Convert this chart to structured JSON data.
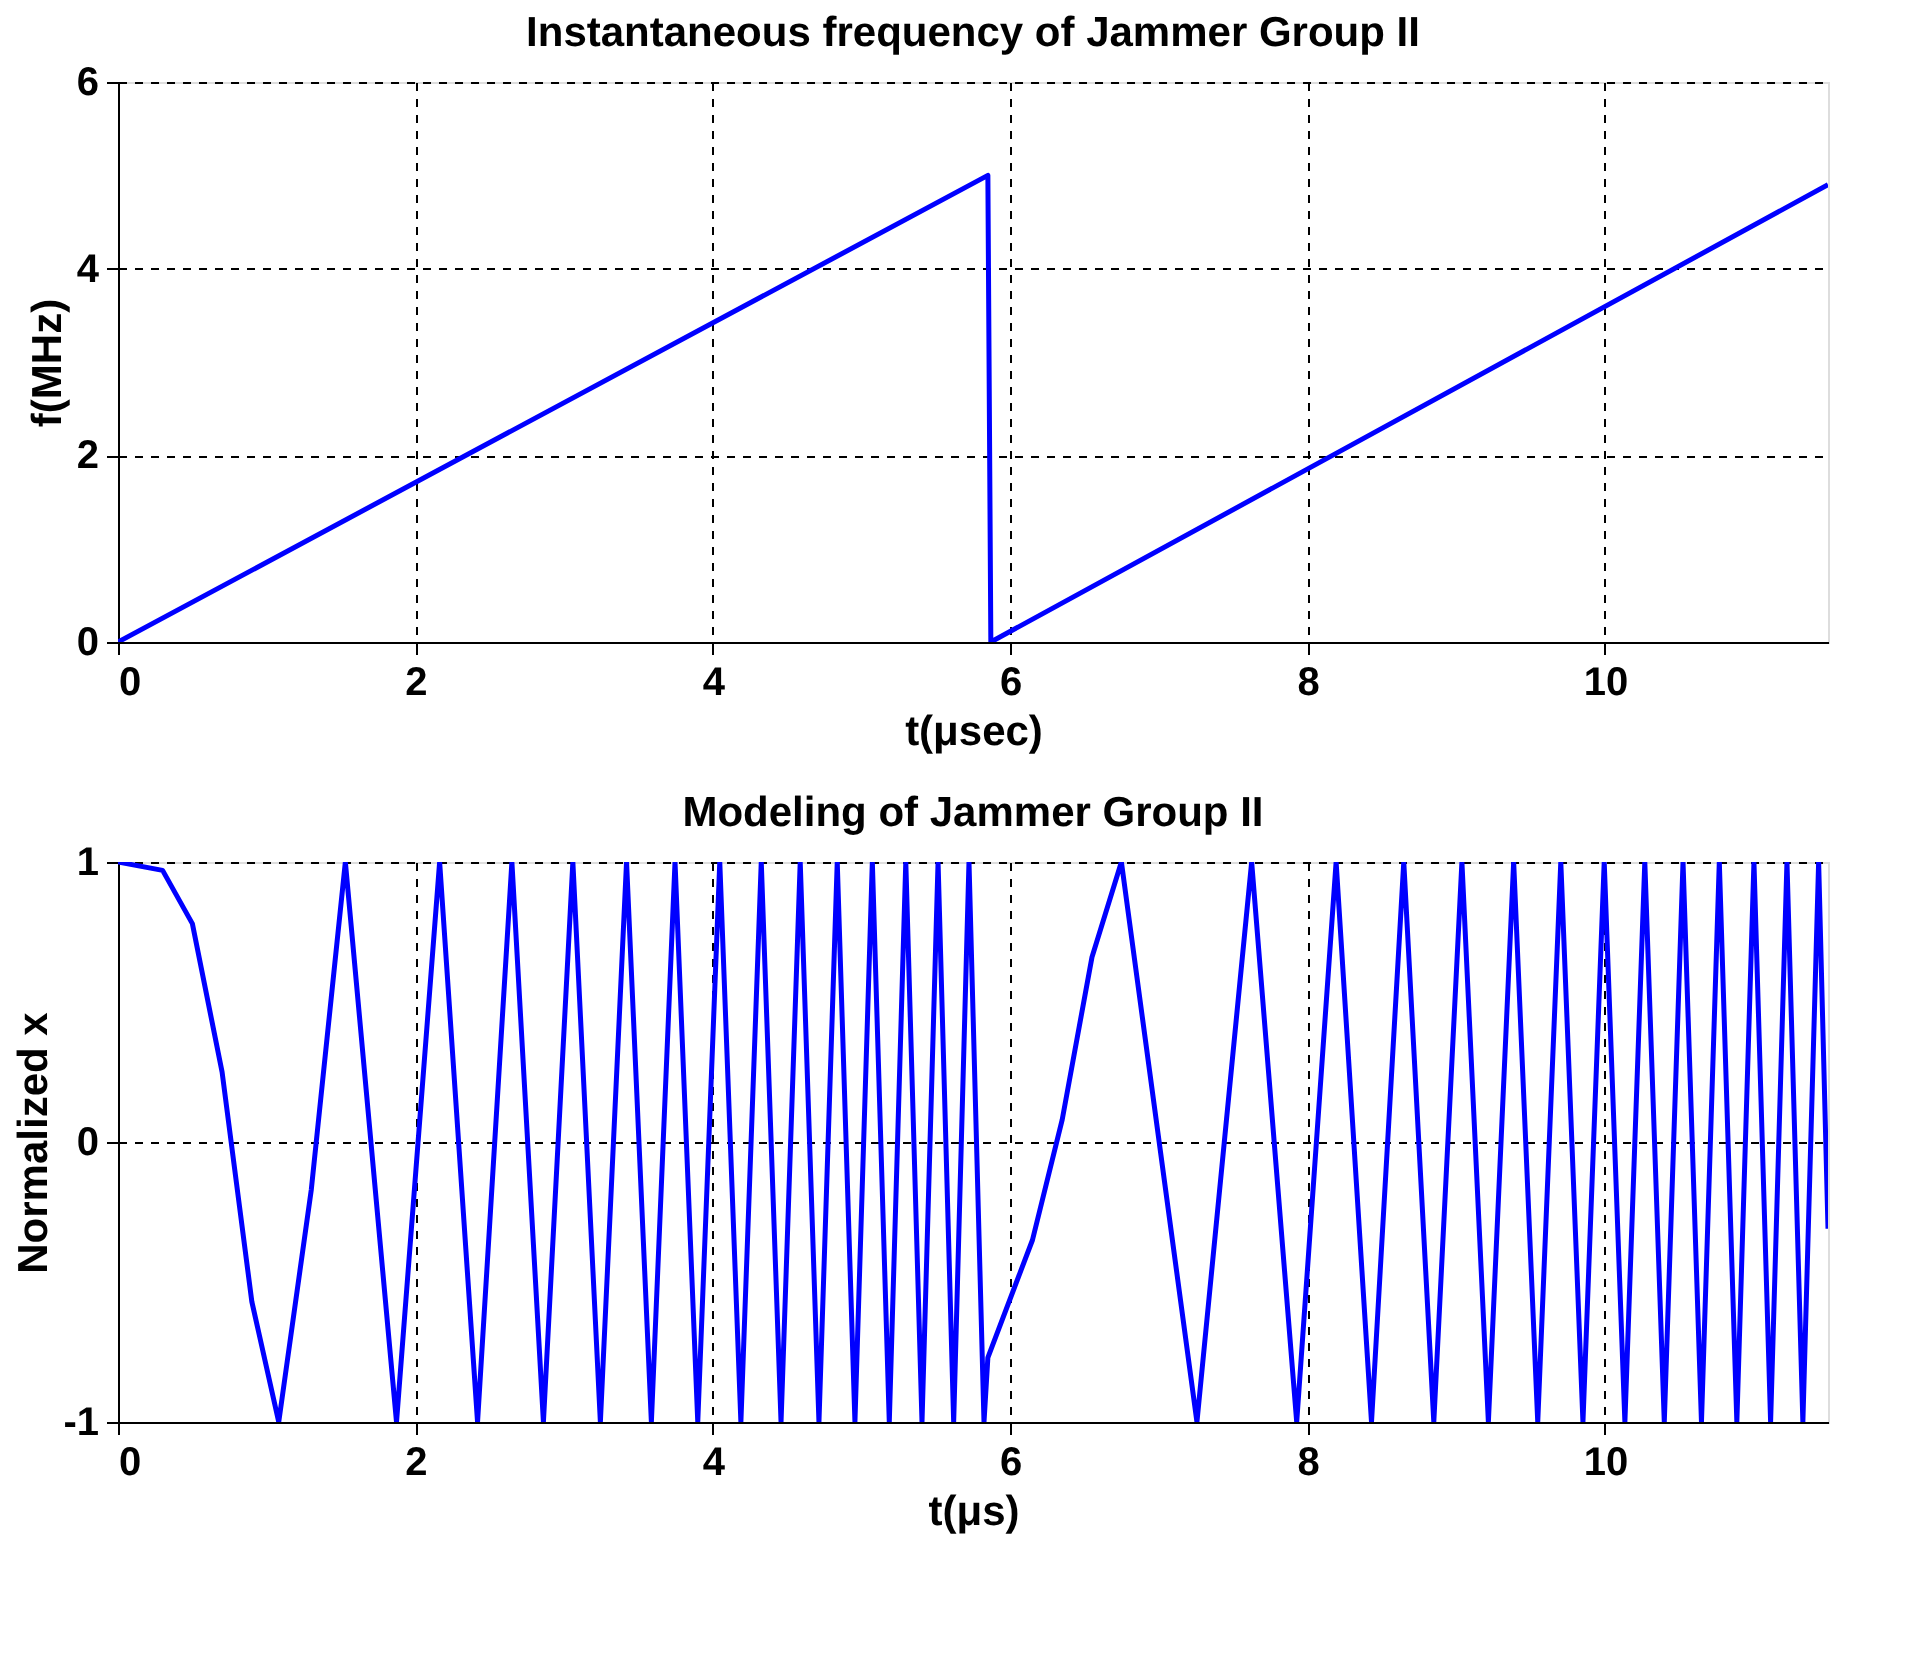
{
  "chart_data": [
    {
      "type": "line",
      "title": "Instantaneous frequency of Jammer Group II",
      "xlabel": "t(μsec)",
      "ylabel": "f(MHz)",
      "x": [
        0,
        5.85,
        5.87,
        11.5
      ],
      "series": [
        {
          "color": "#0000ff",
          "values": [
            0,
            5,
            0,
            4.9
          ]
        }
      ],
      "xlim": [
        0,
        11.5
      ],
      "xticks": [
        0,
        2,
        4,
        6,
        8,
        10
      ],
      "ylim": [
        0,
        6
      ],
      "yticks": [
        0,
        2,
        4,
        6
      ],
      "grid": true
    },
    {
      "type": "line",
      "title": "Modeling of Jammer Group II",
      "xlabel": "t(μs)",
      "ylabel": "Normalized x",
      "x": [
        0,
        0.3,
        0.5,
        0.7,
        0.9,
        1.081,
        1.3,
        1.529,
        1.873,
        2.163,
        2.418,
        2.649,
        2.861,
        3.059,
        3.244,
        3.42,
        3.587,
        3.746,
        3.899,
        4.047,
        4.189,
        4.326,
        4.459,
        4.588,
        4.714,
        4.837,
        4.956,
        5.073,
        5.187,
        5.298,
        5.407,
        5.515,
        5.62,
        5.723,
        5.824,
        5.85,
        6.15,
        6.35,
        6.55,
        6.748,
        7.256,
        7.624,
        7.927,
        8.192,
        8.43,
        8.647,
        8.849,
        9.038,
        9.216,
        9.386,
        9.548,
        9.703,
        9.852,
        9.995,
        10.134,
        10.268,
        10.399,
        10.525,
        10.649,
        10.769,
        10.887,
        11.002,
        11.114,
        11.224,
        11.331,
        11.437,
        11.5
      ],
      "series": [
        {
          "color": "#0000ff",
          "values": [
            1,
            0.97,
            0.78,
            0.25,
            -0.57,
            -1,
            -0.17,
            1,
            -1,
            1,
            -1,
            1,
            -1,
            1,
            -1,
            1,
            -1,
            1,
            -1,
            1,
            -1,
            1,
            -1,
            1,
            -1,
            1,
            -1,
            1,
            -1,
            1,
            -1,
            1,
            -1,
            1,
            -1,
            -0.77,
            -0.35,
            0.08,
            0.66,
            1,
            -1,
            1,
            -1,
            1,
            -1,
            1,
            -1,
            1,
            -1,
            1,
            -1,
            1,
            -1,
            1,
            -1,
            1,
            -1,
            1,
            -1,
            1,
            -1,
            1,
            -1,
            1,
            -1,
            1,
            -0.31
          ]
        }
      ],
      "xlim": [
        0,
        11.5
      ],
      "xticks": [
        0,
        2,
        4,
        6,
        8,
        10
      ],
      "ylim": [
        -1,
        1
      ],
      "yticks": [
        -1,
        0,
        1
      ],
      "grid": true
    }
  ]
}
